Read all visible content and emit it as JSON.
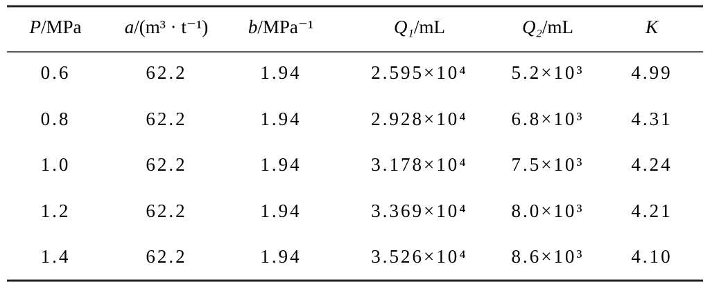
{
  "table": {
    "headers": [
      {
        "symbol": "P",
        "unit": "/MPa"
      },
      {
        "symbol": "a",
        "unit": "/(m³ · t⁻¹)"
      },
      {
        "symbol": "b",
        "unit": "/MPa⁻¹"
      },
      {
        "symbol": "Q₁",
        "unit": "/mL"
      },
      {
        "symbol": "Q₂",
        "unit": "/mL"
      },
      {
        "symbol": "K",
        "unit": ""
      }
    ],
    "rows": [
      [
        "0.6",
        "62.2",
        "1.94",
        "2.595×10⁴",
        "5.2×10³",
        "4.99"
      ],
      [
        "0.8",
        "62.2",
        "1.94",
        "2.928×10⁴",
        "6.8×10³",
        "4.31"
      ],
      [
        "1.0",
        "62.2",
        "1.94",
        "3.178×10⁴",
        "7.5×10³",
        "4.24"
      ],
      [
        "1.2",
        "62.2",
        "1.94",
        "3.369×10⁴",
        "8.0×10³",
        "4.21"
      ],
      [
        "1.4",
        "62.2",
        "1.94",
        "3.526×10⁴",
        "8.6×10³",
        "4.10"
      ]
    ]
  }
}
